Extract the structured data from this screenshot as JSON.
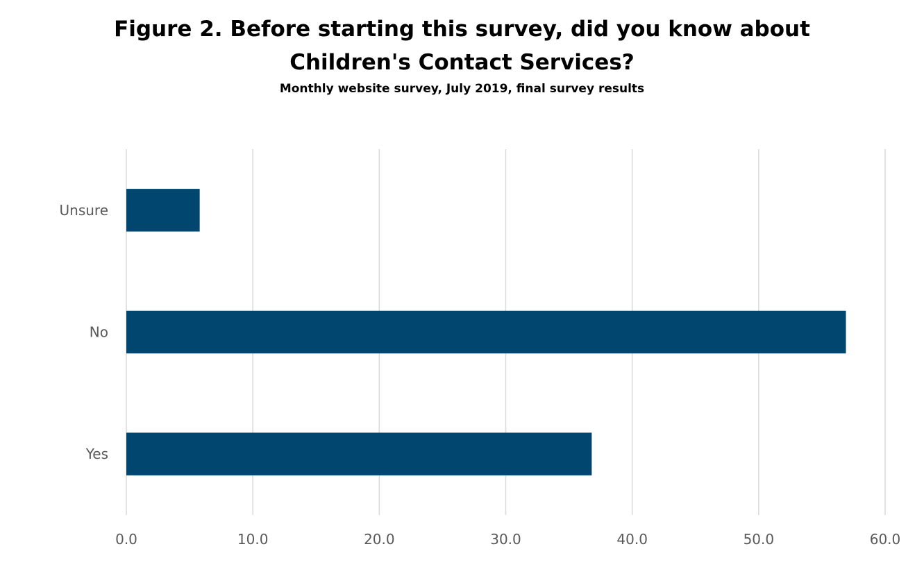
{
  "chart_data": {
    "type": "bar",
    "orientation": "horizontal",
    "title": "Figure 2. Before starting this survey, did you know about\nChildren's Contact Services?",
    "subtitle": "Monthly website survey, July 2019, final survey results",
    "categories": [
      "Unsure",
      "No",
      "Yes"
    ],
    "values": [
      5.8,
      56.9,
      36.8
    ],
    "xlim": [
      0,
      60
    ],
    "xticks": [
      "0.0",
      "10.0",
      "20.0",
      "30.0",
      "40.0",
      "50.0",
      "60.0"
    ],
    "xlabel": "",
    "ylabel": "",
    "grid": "vertical",
    "legend": "none",
    "bar_color": "#00466E",
    "grid_color": "#D9D9D9",
    "label_color": "#595959"
  }
}
